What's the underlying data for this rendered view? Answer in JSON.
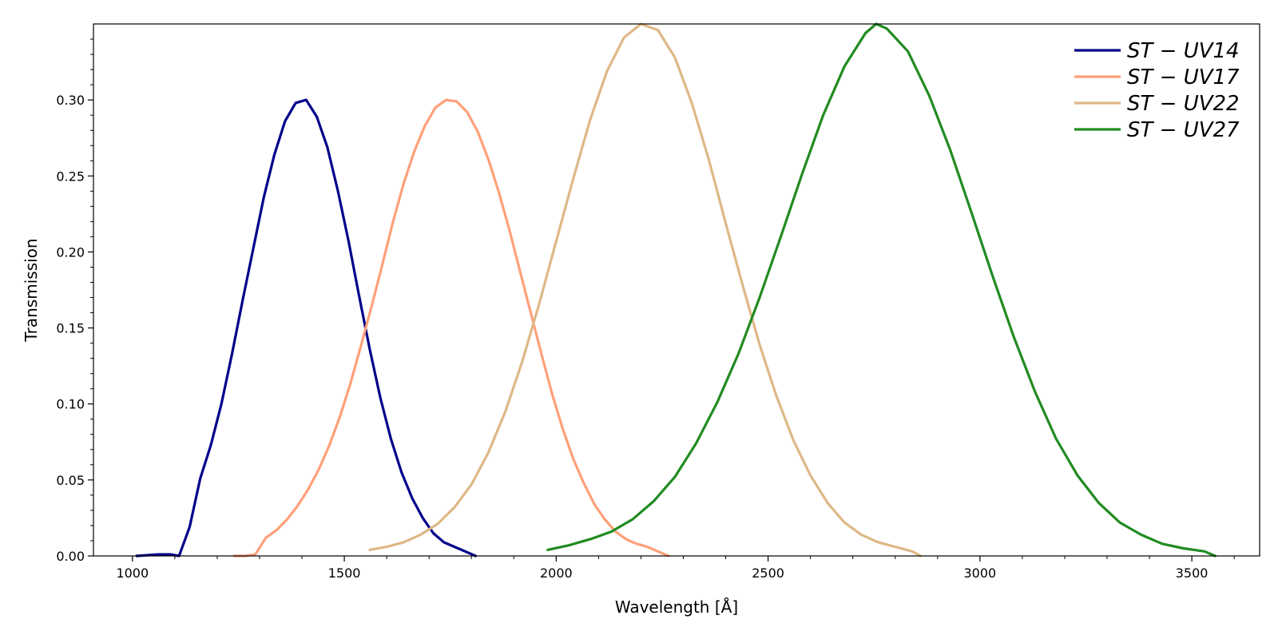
{
  "chart_data": {
    "type": "line",
    "title": "",
    "xlabel": "Wavelength [Å]",
    "ylabel": "Transmission",
    "xlim": [
      908,
      3660
    ],
    "ylim": [
      0.0,
      0.35
    ],
    "x_ticks": [
      {
        "value": 1000,
        "label": "1000"
      },
      {
        "value": 1500,
        "label": "1500"
      },
      {
        "value": 2000,
        "label": "2000"
      },
      {
        "value": 2500,
        "label": "2500"
      },
      {
        "value": 3000,
        "label": "3000"
      },
      {
        "value": 3500,
        "label": "3500"
      }
    ],
    "y_ticks": [
      {
        "value": 0.0,
        "label": "0.00"
      },
      {
        "value": 0.05,
        "label": "0.05"
      },
      {
        "value": 0.1,
        "label": "0.10"
      },
      {
        "value": 0.15,
        "label": "0.15"
      },
      {
        "value": 0.2,
        "label": "0.20"
      },
      {
        "value": 0.25,
        "label": "0.25"
      },
      {
        "value": 0.3,
        "label": "0.30"
      }
    ],
    "grid": false,
    "legend_position": "top-right",
    "series": [
      {
        "name": "ST − UV14",
        "color": "#00008b",
        "x": [
          1010,
          1060,
          1090,
          1110,
          1135,
          1160,
          1185,
          1210,
          1235,
          1260,
          1285,
          1310,
          1335,
          1360,
          1385,
          1410,
          1435,
          1460,
          1485,
          1510,
          1535,
          1560,
          1585,
          1610,
          1635,
          1660,
          1685,
          1710,
          1735,
          1760,
          1785,
          1810
        ],
        "values": [
          0.0,
          0.001,
          0.001,
          0.0,
          0.019,
          0.051,
          0.073,
          0.1,
          0.133,
          0.168,
          0.202,
          0.236,
          0.264,
          0.286,
          0.298,
          0.3,
          0.289,
          0.269,
          0.24,
          0.207,
          0.171,
          0.136,
          0.104,
          0.077,
          0.055,
          0.038,
          0.025,
          0.015,
          0.009,
          0.006,
          0.003,
          0.0
        ]
      },
      {
        "name": "ST − UV17",
        "color": "#ffa07a",
        "x": [
          1240,
          1265,
          1290,
          1315,
          1340,
          1365,
          1390,
          1415,
          1440,
          1465,
          1490,
          1515,
          1540,
          1565,
          1590,
          1615,
          1640,
          1665,
          1690,
          1715,
          1740,
          1765,
          1790,
          1815,
          1840,
          1865,
          1890,
          1915,
          1940,
          1965,
          1990,
          2015,
          2040,
          2065,
          2090,
          2115,
          2140,
          2165,
          2190,
          2215,
          2240,
          2265
        ],
        "values": [
          0.0,
          0.0,
          0.001,
          0.012,
          0.017,
          0.024,
          0.033,
          0.044,
          0.057,
          0.073,
          0.092,
          0.114,
          0.139,
          0.165,
          0.192,
          0.22,
          0.245,
          0.266,
          0.283,
          0.295,
          0.3,
          0.299,
          0.292,
          0.279,
          0.261,
          0.239,
          0.214,
          0.187,
          0.16,
          0.133,
          0.107,
          0.084,
          0.064,
          0.048,
          0.034,
          0.024,
          0.016,
          0.011,
          0.008,
          0.006,
          0.003,
          0.0
        ]
      },
      {
        "name": "ST − UV22",
        "color": "#deb887",
        "x": [
          1560,
          1600,
          1640,
          1680,
          1720,
          1760,
          1800,
          1840,
          1880,
          1920,
          1960,
          2000,
          2040,
          2080,
          2120,
          2160,
          2200,
          2240,
          2280,
          2320,
          2360,
          2400,
          2440,
          2480,
          2520,
          2560,
          2600,
          2640,
          2680,
          2720,
          2760,
          2800,
          2840,
          2860
        ],
        "values": [
          0.004,
          0.006,
          0.009,
          0.014,
          0.021,
          0.032,
          0.047,
          0.068,
          0.095,
          0.128,
          0.166,
          0.207,
          0.248,
          0.287,
          0.319,
          0.341,
          0.35,
          0.346,
          0.328,
          0.298,
          0.261,
          0.219,
          0.178,
          0.139,
          0.105,
          0.076,
          0.053,
          0.035,
          0.022,
          0.014,
          0.009,
          0.006,
          0.003,
          0.0
        ]
      },
      {
        "name": "ST − UV27",
        "color": "#228b22",
        "x": [
          1980,
          2030,
          2080,
          2130,
          2180,
          2230,
          2280,
          2330,
          2380,
          2430,
          2480,
          2530,
          2580,
          2630,
          2680,
          2730,
          2755,
          2780,
          2830,
          2880,
          2930,
          2980,
          3030,
          3080,
          3130,
          3180,
          3230,
          3280,
          3330,
          3380,
          3430,
          3480,
          3530,
          3555
        ],
        "values": [
          0.004,
          0.007,
          0.011,
          0.016,
          0.024,
          0.036,
          0.052,
          0.074,
          0.101,
          0.133,
          0.17,
          0.21,
          0.251,
          0.29,
          0.322,
          0.344,
          0.35,
          0.347,
          0.332,
          0.303,
          0.267,
          0.226,
          0.184,
          0.144,
          0.108,
          0.077,
          0.053,
          0.035,
          0.022,
          0.014,
          0.008,
          0.005,
          0.003,
          0.0
        ]
      }
    ]
  }
}
